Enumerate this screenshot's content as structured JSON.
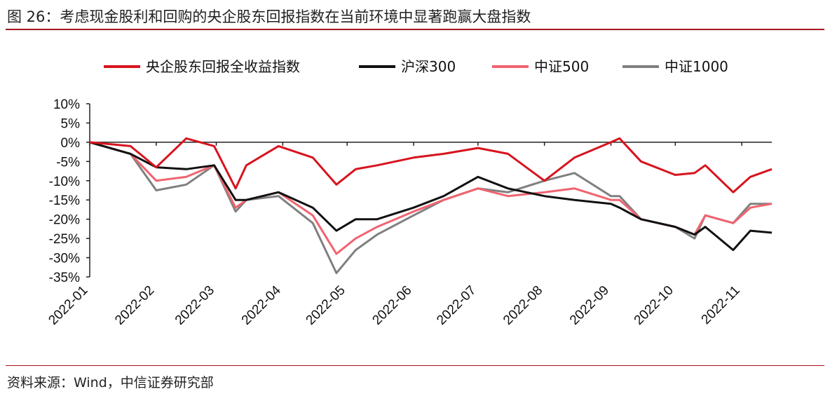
{
  "title": "图 26：考虑现金股利和回购的央企股东回报指数在当前环境中显著跑赢大盘指数",
  "source": "资料来源：Wind，中信证券研究部",
  "chart_data": {
    "type": "line",
    "title": "",
    "xlabel": "",
    "ylabel": "",
    "ylim": [
      -35,
      10
    ],
    "yticks": [
      "10%",
      "5%",
      "0%",
      "-5%",
      "-10%",
      "-15%",
      "-20%",
      "-25%",
      "-30%",
      "-35%"
    ],
    "ytick_values": [
      10,
      5,
      0,
      -5,
      -10,
      -15,
      -20,
      -25,
      -30,
      -35
    ],
    "xlim": [
      "2022-01-01",
      "2022-11-15"
    ],
    "xticks": [
      "2022-01",
      "2022-02",
      "2022-03",
      "2022-04",
      "2022-05",
      "2022-06",
      "2022-07",
      "2022-08",
      "2022-09",
      "2022-10",
      "2022-11"
    ],
    "legend_position": "top",
    "grid": false,
    "x": [
      "2022-01-01",
      "2022-01-20",
      "2022-02-01",
      "2022-02-15",
      "2022-02-28",
      "2022-03-10",
      "2022-03-15",
      "2022-03-30",
      "2022-04-15",
      "2022-04-26",
      "2022-05-05",
      "2022-05-15",
      "2022-06-01",
      "2022-06-15",
      "2022-07-01",
      "2022-07-15",
      "2022-08-01",
      "2022-08-15",
      "2022-09-01",
      "2022-09-05",
      "2022-09-15",
      "2022-10-01",
      "2022-10-10",
      "2022-10-15",
      "2022-10-28",
      "2022-11-05",
      "2022-11-15"
    ],
    "series": [
      {
        "name": "央企股东回报全收益指数",
        "color": "#d7141e",
        "values": [
          0,
          -1,
          -6.5,
          1,
          -1,
          -12,
          -6,
          -1,
          -4,
          -11,
          -7,
          -6,
          -4,
          -3,
          -1.5,
          -3,
          -10,
          -4,
          0,
          1,
          -5,
          -8.5,
          -8,
          -6,
          -13,
          -9,
          -7
        ]
      },
      {
        "name": "沪深300",
        "color": "#111111",
        "values": [
          0,
          -3,
          -6.5,
          -7,
          -6,
          -15,
          -15,
          -13,
          -17,
          -23,
          -20,
          -20,
          -17,
          -14,
          -9,
          -12,
          -14,
          -15,
          -16,
          -17,
          -20,
          -22,
          -24,
          -22,
          -28,
          -23,
          -23.5
        ]
      },
      {
        "name": "中证500",
        "color": "#f06470",
        "values": [
          0,
          -3,
          -10,
          -9,
          -6,
          -17,
          -15,
          -13,
          -19,
          -29,
          -25,
          -22,
          -18,
          -15,
          -12,
          -14,
          -13,
          -12,
          -15,
          -15,
          -20,
          -22,
          -24,
          -19,
          -21,
          -17,
          -16
        ]
      },
      {
        "name": "中证1000",
        "color": "#808080",
        "values": [
          0,
          -3,
          -12.5,
          -11,
          -6,
          -18,
          -15,
          -14,
          -21,
          -34,
          -28,
          -24,
          -19,
          -15,
          -12,
          -13,
          -10,
          -8,
          -14,
          -14,
          -20,
          -22,
          -25,
          -19,
          -21,
          -16,
          -16
        ]
      }
    ]
  }
}
